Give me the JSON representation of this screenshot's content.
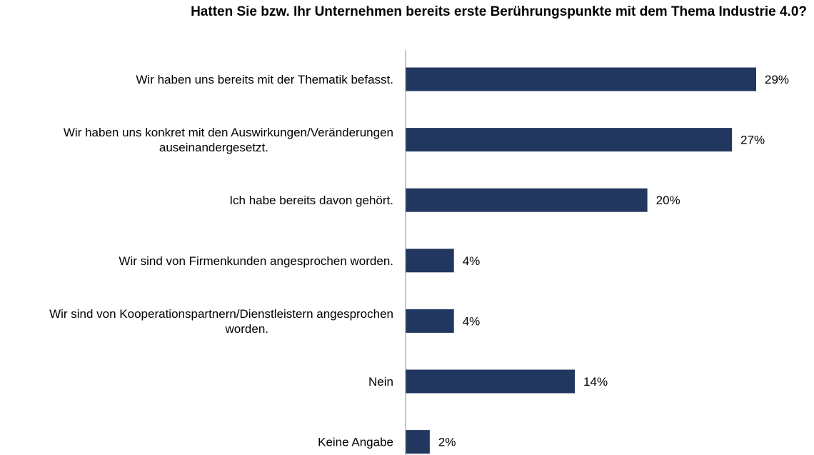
{
  "chart_data": {
    "type": "bar",
    "orientation": "horizontal",
    "title": "Hatten Sie bzw. Ihr Unternehmen bereits erste Berührungspunkte mit dem Thema Industrie 4.0?",
    "categories": [
      [
        "Wir haben uns bereits mit der Thematik befasst."
      ],
      [
        "Wir haben uns konkret mit den Auswirkungen/Veränderungen",
        "auseinandergesetzt."
      ],
      [
        "Ich habe bereits davon gehört."
      ],
      [
        "Wir sind von Firmenkunden angesprochen worden."
      ],
      [
        "Wir sind von Kooperationspartnern/Dienstleistern  angesprochen",
        "worden."
      ],
      [
        "Nein"
      ],
      [
        "Keine Angabe"
      ]
    ],
    "values": [
      29,
      27,
      20,
      4,
      4,
      14,
      2
    ],
    "value_labels": [
      "29%",
      "27%",
      "20%",
      "4%",
      "4%",
      "14%",
      "2%"
    ],
    "unit": "%",
    "xlim": [
      0,
      32
    ],
    "grid": false,
    "legend": "none",
    "bar_color": "#22375F",
    "axis_color": "#8C8C8C"
  }
}
